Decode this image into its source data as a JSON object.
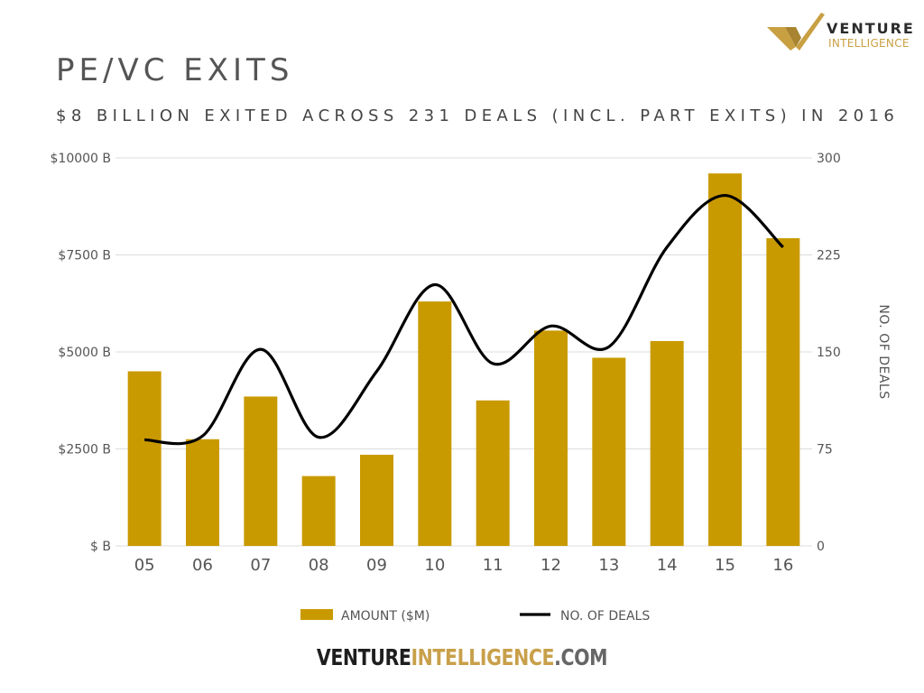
{
  "header": {
    "title": "PE/VC EXITS",
    "subtitle": "$8 BILLION EXITED ACROSS 231 DEALS (INCL. PART EXITS) IN 2016"
  },
  "logo": {
    "word1": "VENTURE",
    "word2": "INTELLIGENCE"
  },
  "footer": {
    "part1": "VENTURE",
    "part2": "INTELLIGENCE",
    "part3": ".COM"
  },
  "colors": {
    "bar": "#c99a00",
    "line": "#000000",
    "grid": "#dddddd",
    "axis_text": "#555555",
    "logo_gold": "#c8a042"
  },
  "chart_data": {
    "type": "bar",
    "categories": [
      "05",
      "06",
      "07",
      "08",
      "09",
      "10",
      "11",
      "12",
      "13",
      "14",
      "15",
      "16"
    ],
    "series": [
      {
        "name": "AMOUNT ($M)",
        "type": "bar",
        "axis": "left",
        "values": [
          4500,
          2750,
          3850,
          1800,
          2350,
          6300,
          3750,
          5550,
          4850,
          5280,
          9600,
          7930
        ]
      },
      {
        "name": "NO. OF DEALS",
        "type": "line",
        "axis": "right",
        "smooth": true,
        "values": [
          82,
          85,
          152,
          84,
          135,
          202,
          141,
          170,
          154,
          231,
          271,
          231
        ]
      }
    ],
    "y_left": {
      "ticks": [
        "$ B",
        "$2500 B",
        "$5000 B",
        "$7500 B",
        "$10000 B"
      ],
      "ylim": [
        0,
        10000
      ]
    },
    "y_right": {
      "label": "NO. OF DEALS",
      "ticks": [
        "0",
        "75",
        "150",
        "225",
        "300"
      ],
      "ylim": [
        0,
        300
      ]
    },
    "grid": true,
    "legend": {
      "position": "bottom",
      "entries": [
        "AMOUNT ($M)",
        "NO. OF DEALS"
      ]
    }
  }
}
